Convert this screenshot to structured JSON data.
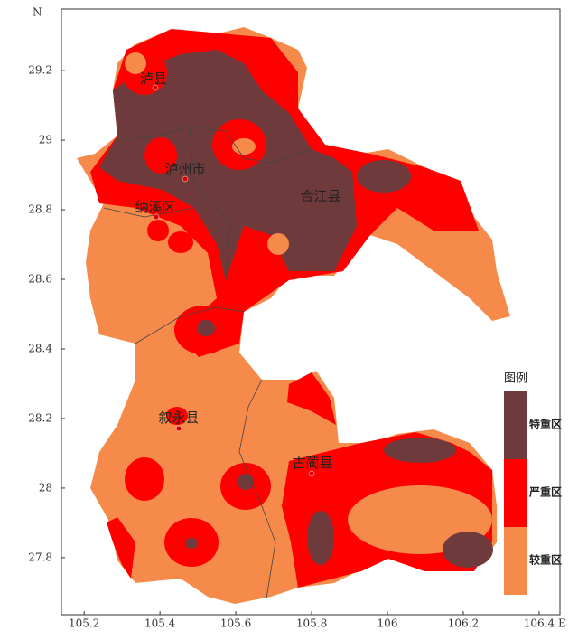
{
  "map": {
    "north_label": "N",
    "east_label": "E",
    "xlim": [
      105.14,
      106.455
    ],
    "ylim": [
      27.636,
      29.377
    ],
    "xticks": [
      105.2,
      105.4,
      105.6,
      105.8,
      106,
      106.2,
      106.4
    ],
    "yticks": [
      27.8,
      28,
      28.2,
      28.4,
      28.6,
      28.8,
      29,
      29.2
    ],
    "places": [
      "泸县",
      "泸州市",
      "纳溪区",
      "合江县",
      "叙永县",
      "古蔺县"
    ],
    "legend": {
      "title": "图例",
      "items": [
        {
          "label": "特重区",
          "color": "#6e3a3c"
        },
        {
          "label": "严重区",
          "color": "#ff0000"
        },
        {
          "label": "较重区",
          "color": "#f58a4b"
        }
      ]
    }
  }
}
